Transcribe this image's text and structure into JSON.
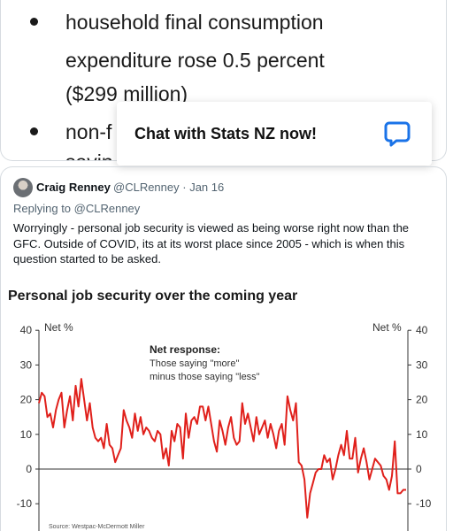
{
  "embed": {
    "bullets": [
      {
        "lines": [
          "household final consumption",
          "expenditure rose 0.5 percent",
          "($299 million)"
        ]
      },
      {
        "lines": [
          "non-f"
        ]
      }
    ],
    "partial_text": "savin"
  },
  "chat_widget": {
    "label": "Chat with Stats NZ now!",
    "icon": "chat-bubble-icon",
    "accent_color": "#1a73e8"
  },
  "tweet": {
    "author": "Craig Renney",
    "handle": "@CLRenney",
    "date": "· Jan 16",
    "replying_to": "Replying to @CLRenney",
    "text": "Worryingly - personal job security is viewed as being worse right now than the GFC. Outside of COVID, its at its worst place since 2005 - which is when this question started to be asked."
  },
  "chart_data": {
    "type": "line",
    "title": "Personal job security over the coming year",
    "ylabel_left": "Net %",
    "ylabel_right": "Net %",
    "ylim": [
      -15,
      40
    ],
    "yticks": [
      -10,
      0,
      10,
      20,
      30,
      40
    ],
    "annotation_title": "Net response:",
    "annotation_lines": [
      "Those saying \"more\"",
      "minus those saying \"less\""
    ],
    "source": "Source: Westpac-McDermott Miller",
    "line_color": "#e0201b",
    "series": [
      {
        "values": [
          19,
          22,
          21,
          15,
          16,
          12,
          17,
          20,
          22,
          12,
          17,
          21,
          14,
          24,
          18,
          26,
          20,
          14,
          19,
          12,
          9,
          8,
          9,
          6,
          13,
          7,
          6,
          2,
          4,
          6,
          17,
          14,
          12,
          9,
          16,
          11,
          15,
          10,
          12,
          11,
          9,
          8,
          11,
          10,
          3,
          6,
          1,
          11,
          8,
          13,
          12,
          3,
          16,
          9,
          14,
          15,
          13,
          18,
          18,
          14,
          18,
          13,
          8,
          5,
          14,
          11,
          7,
          12,
          15,
          9,
          7,
          8,
          19,
          13,
          16,
          12,
          8,
          15,
          10,
          12,
          14,
          9,
          13,
          10,
          6,
          11,
          13,
          7,
          21,
          17,
          14,
          19,
          2,
          1,
          -3,
          -14,
          -7,
          -4,
          -1,
          0,
          0,
          4,
          2,
          3,
          -3,
          0,
          4,
          7,
          4,
          11,
          3,
          3,
          9,
          -1,
          3,
          6,
          2,
          -3,
          0,
          3,
          2,
          1,
          -2,
          -3,
          -6,
          -2,
          8,
          -7,
          -7,
          -6,
          -6
        ]
      }
    ]
  }
}
